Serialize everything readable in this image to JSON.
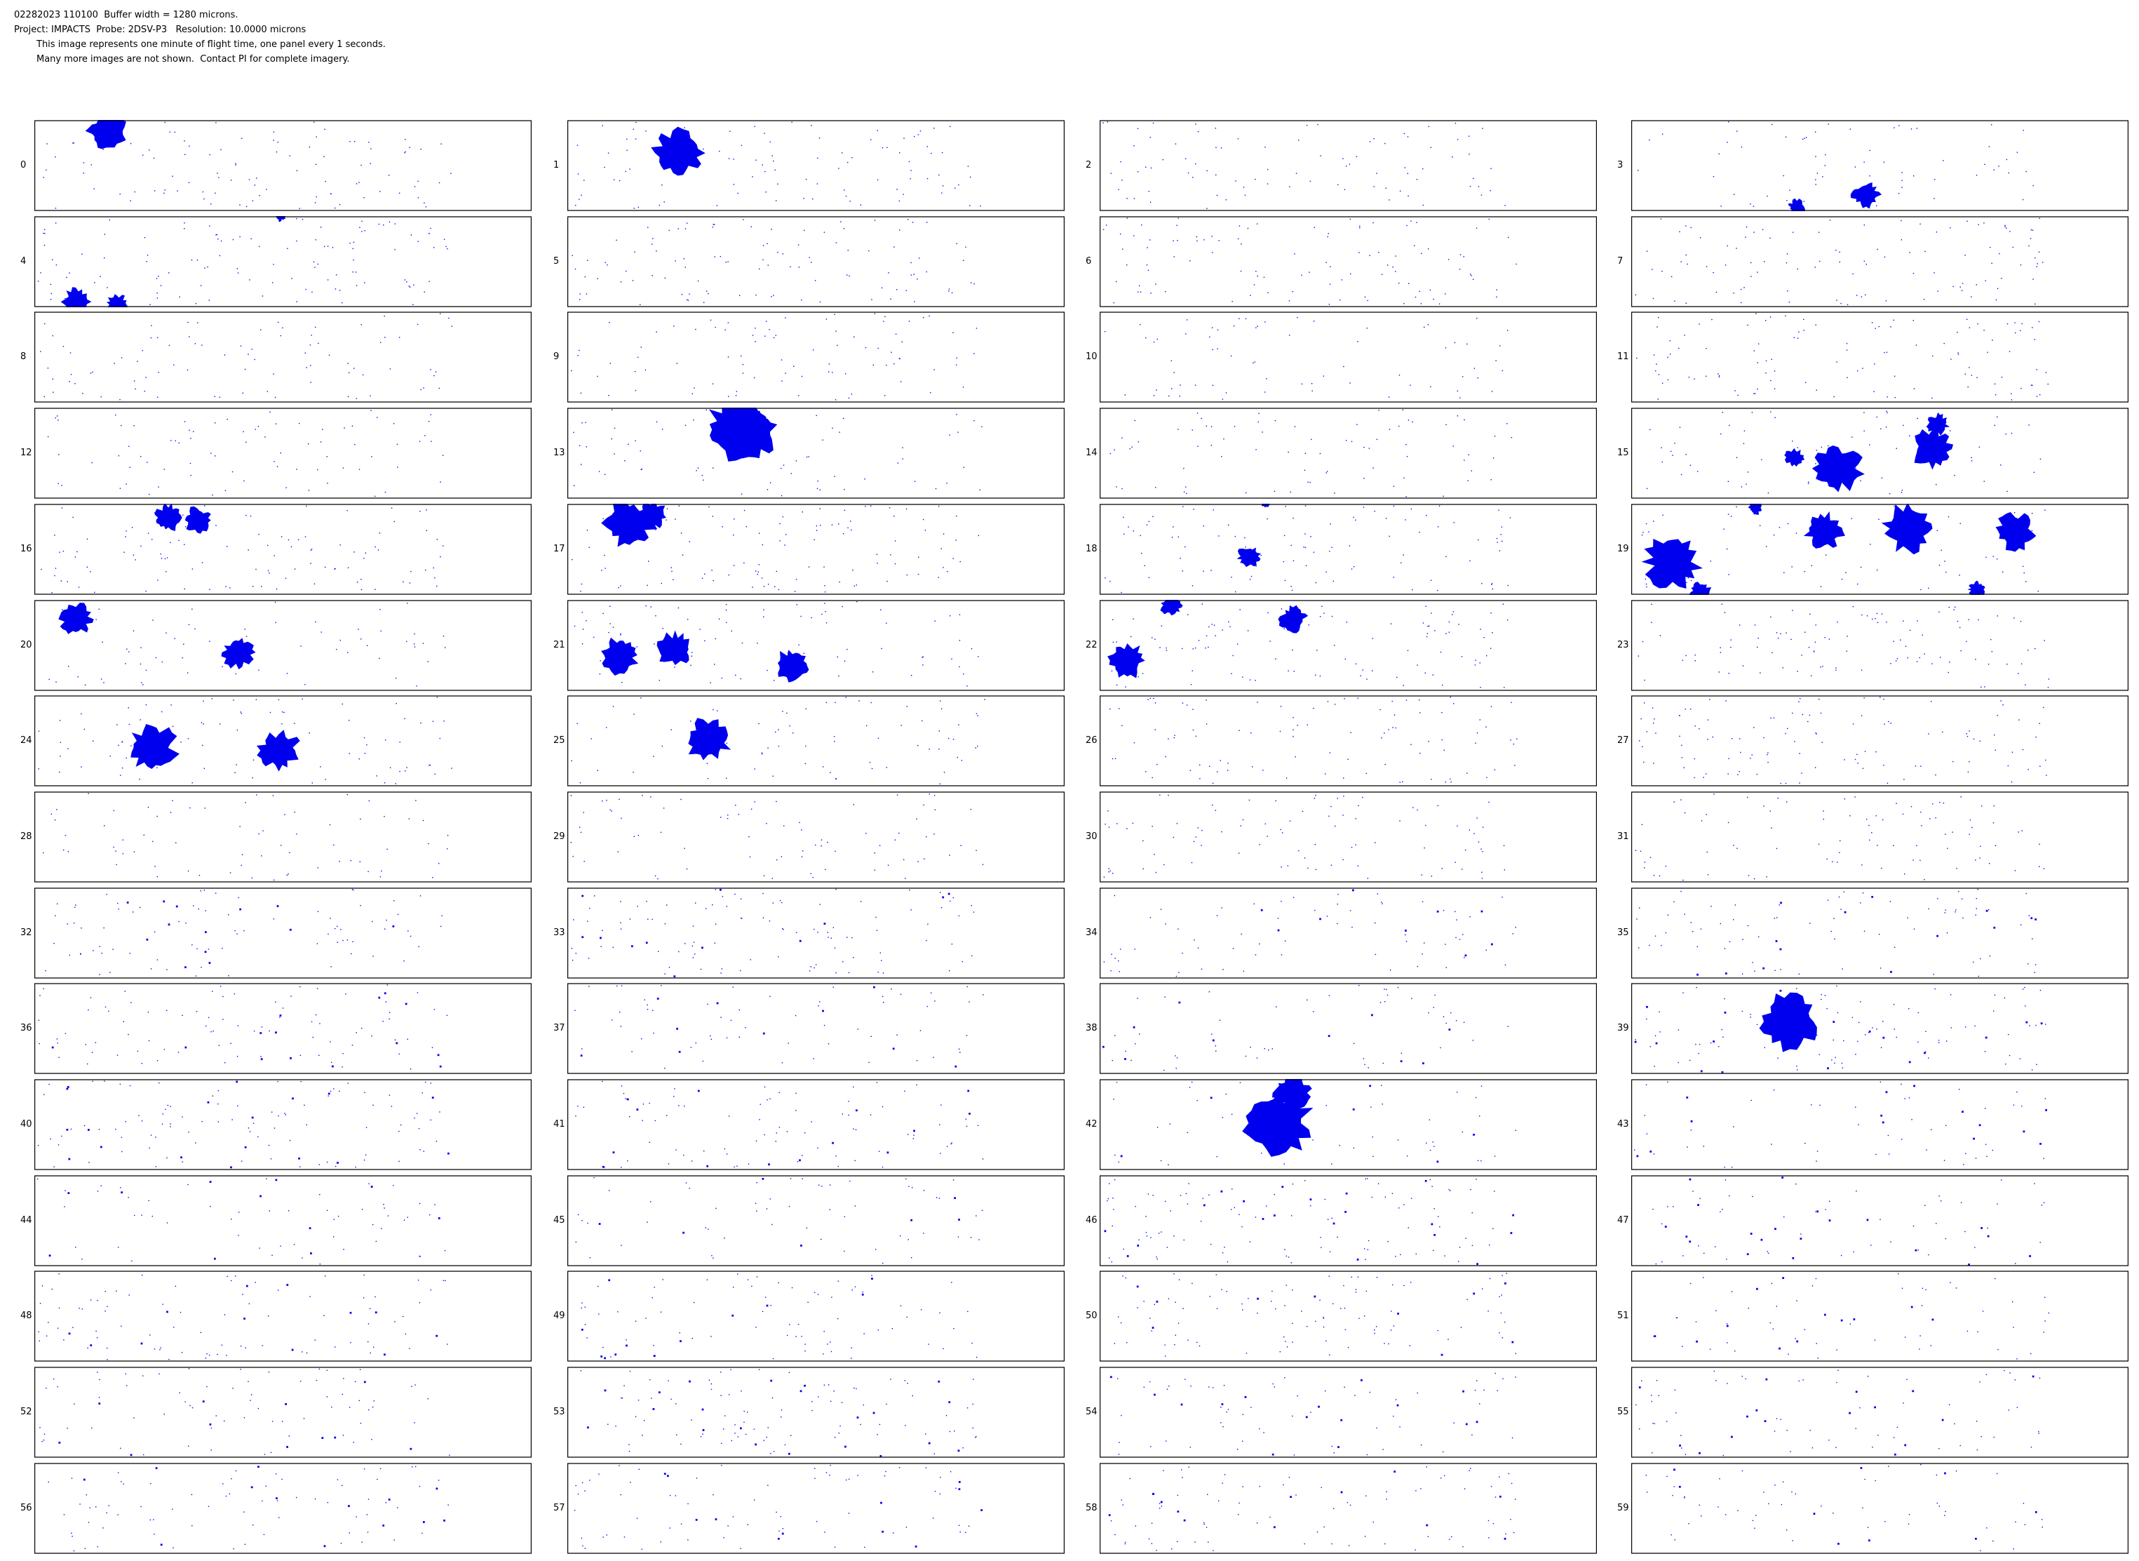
{
  "header": {
    "lines": [
      "02282023 110100  Buffer width = 1280 microns.",
      "Project: IMPACTS  Probe: 2DSV-P3   Resolution: 10.0000 microns",
      "This image represents one minute of flight time, one panel every 1 seconds.",
      "Many more images are not shown.  Contact PI for complete imagery."
    ]
  },
  "panels": {
    "labels": [
      "0",
      "1",
      "2",
      "3",
      "4",
      "5",
      "6",
      "7",
      "8",
      "9",
      "10",
      "11",
      "12",
      "13",
      "14",
      "15",
      "16",
      "17",
      "18",
      "19",
      "20",
      "21",
      "22",
      "23",
      "24",
      "25",
      "26",
      "27",
      "28",
      "29",
      "30",
      "31",
      "32",
      "33",
      "34",
      "35",
      "36",
      "37",
      "38",
      "39",
      "40",
      "41",
      "42",
      "43",
      "44",
      "45",
      "46",
      "47",
      "48",
      "49",
      "50",
      "51",
      "52",
      "53",
      "54",
      "55",
      "56",
      "57",
      "58",
      "59"
    ]
  }
}
